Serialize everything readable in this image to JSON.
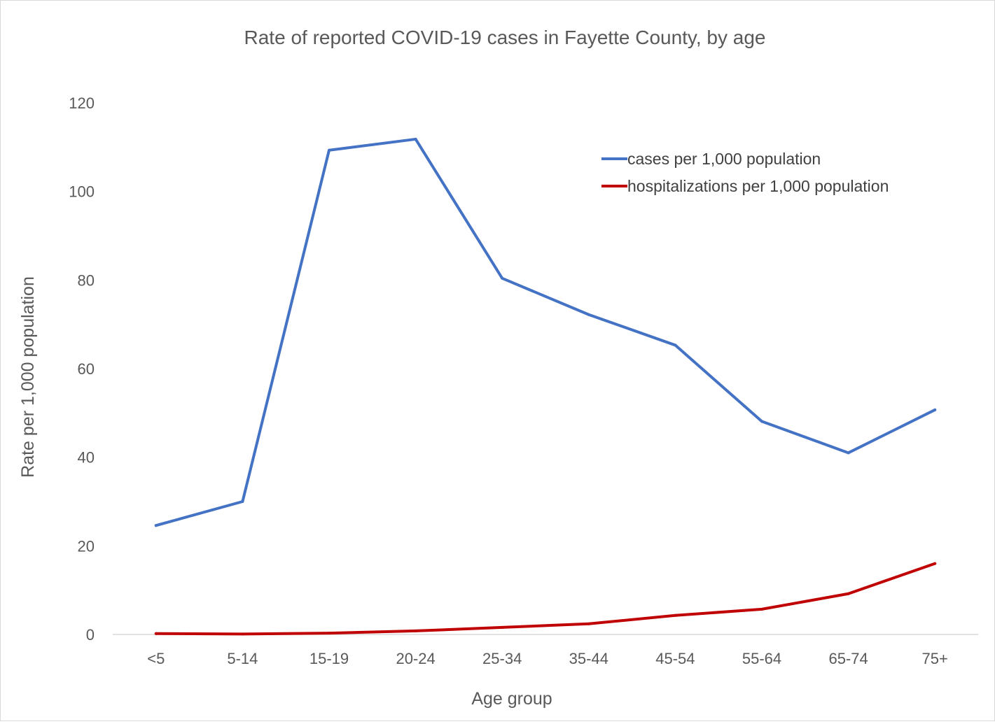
{
  "chart_data": {
    "type": "line",
    "title": "Rate of reported COVID-19 cases in Fayette County, by age",
    "xlabel": "Age group",
    "ylabel": "Rate per 1,000 population",
    "categories": [
      "<5",
      "5-14",
      "15-19",
      "20-24",
      "25-34",
      "35-44",
      "45-54",
      "55-64",
      "65-74",
      "75+"
    ],
    "series": [
      {
        "name": "cases per 1,000 population",
        "color": "#4472c4",
        "values": [
          24.6,
          30.0,
          109.3,
          111.8,
          80.4,
          72.2,
          65.3,
          48.1,
          41.0,
          50.7
        ]
      },
      {
        "name": "hospitalizations per 1,000 population",
        "color": "#c00000",
        "values": [
          0.2,
          0.1,
          0.3,
          0.8,
          1.6,
          2.4,
          4.3,
          5.7,
          9.2,
          16.0
        ]
      }
    ],
    "ylim": [
      0,
      120
    ],
    "yticks": [
      0,
      20,
      40,
      60,
      80,
      100,
      120
    ],
    "grid": false,
    "legend_position": "top-right"
  }
}
